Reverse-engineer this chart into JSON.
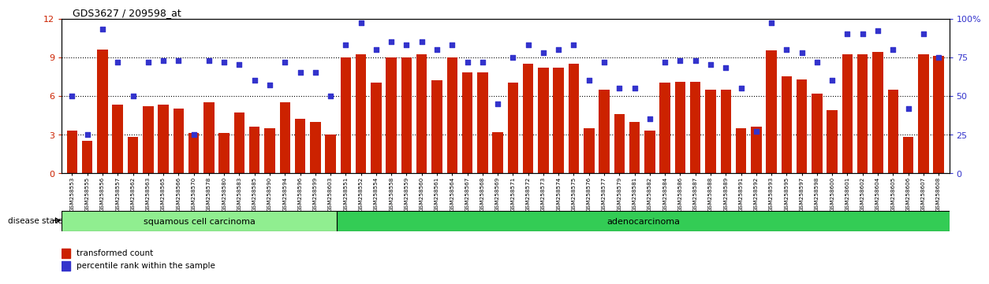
{
  "title": "GDS3627 / 209598_at",
  "sample_ids": [
    "GSM258553",
    "GSM258555",
    "GSM258556",
    "GSM258557",
    "GSM258562",
    "GSM258563",
    "GSM258565",
    "GSM258566",
    "GSM258570",
    "GSM258578",
    "GSM258580",
    "GSM258583",
    "GSM258585",
    "GSM258590",
    "GSM258594",
    "GSM258596",
    "GSM258599",
    "GSM258603",
    "GSM258551",
    "GSM258552",
    "GSM258554",
    "GSM258558",
    "GSM258559",
    "GSM258560",
    "GSM258561",
    "GSM258564",
    "GSM258567",
    "GSM258568",
    "GSM258569",
    "GSM258571",
    "GSM258572",
    "GSM258573",
    "GSM258574",
    "GSM258575",
    "GSM258576",
    "GSM258577",
    "GSM258579",
    "GSM258581",
    "GSM258582",
    "GSM258584",
    "GSM258586",
    "GSM258587",
    "GSM258588",
    "GSM258589",
    "GSM258591",
    "GSM258592",
    "GSM258593",
    "GSM258595",
    "GSM258597",
    "GSM258598",
    "GSM258600",
    "GSM258601",
    "GSM258602",
    "GSM258604",
    "GSM258605",
    "GSM258606",
    "GSM258607",
    "GSM258608"
  ],
  "bar_values": [
    3.3,
    2.5,
    9.6,
    5.3,
    2.8,
    5.2,
    5.3,
    5.0,
    3.1,
    5.5,
    3.1,
    4.7,
    3.6,
    3.5,
    5.5,
    4.2,
    4.0,
    3.0,
    9.0,
    9.2,
    7.0,
    9.0,
    9.0,
    9.2,
    7.2,
    9.0,
    7.8,
    7.8,
    3.2,
    7.0,
    8.5,
    8.2,
    8.2,
    8.5,
    3.5,
    6.5,
    4.6,
    4.0,
    3.3,
    7.0,
    7.1,
    7.1,
    6.5,
    6.5,
    3.5,
    3.6,
    9.5,
    7.5,
    7.3,
    6.2,
    4.9,
    9.2,
    9.2,
    9.4,
    6.5,
    2.8,
    9.2,
    9.1
  ],
  "dot_values": [
    50,
    25,
    93,
    72,
    50,
    72,
    73,
    73,
    25,
    73,
    72,
    70,
    60,
    57,
    72,
    65,
    65,
    50,
    83,
    97,
    80,
    85,
    83,
    85,
    80,
    83,
    72,
    72,
    45,
    75,
    83,
    78,
    80,
    83,
    60,
    72,
    55,
    55,
    35,
    72,
    73,
    73,
    70,
    68,
    55,
    27,
    97,
    80,
    78,
    72,
    60,
    90,
    90,
    92,
    80,
    42,
    90,
    75
  ],
  "squamous_count": 18,
  "bar_color": "#CC2200",
  "dot_color": "#3333CC",
  "ylim_left": [
    0,
    12
  ],
  "ylim_right": [
    0,
    100
  ],
  "yticks_left": [
    0,
    3,
    6,
    9,
    12
  ],
  "yticks_right": [
    0,
    25,
    50,
    75,
    100
  ],
  "squamous_color": "#90EE90",
  "adeno_color": "#33CC55",
  "label_bar": "transformed count",
  "label_dot": "percentile rank within the sample",
  "disease_state_label": "disease state",
  "squamous_label": "squamous cell carcinoma",
  "adeno_label": "adenocarcinoma"
}
